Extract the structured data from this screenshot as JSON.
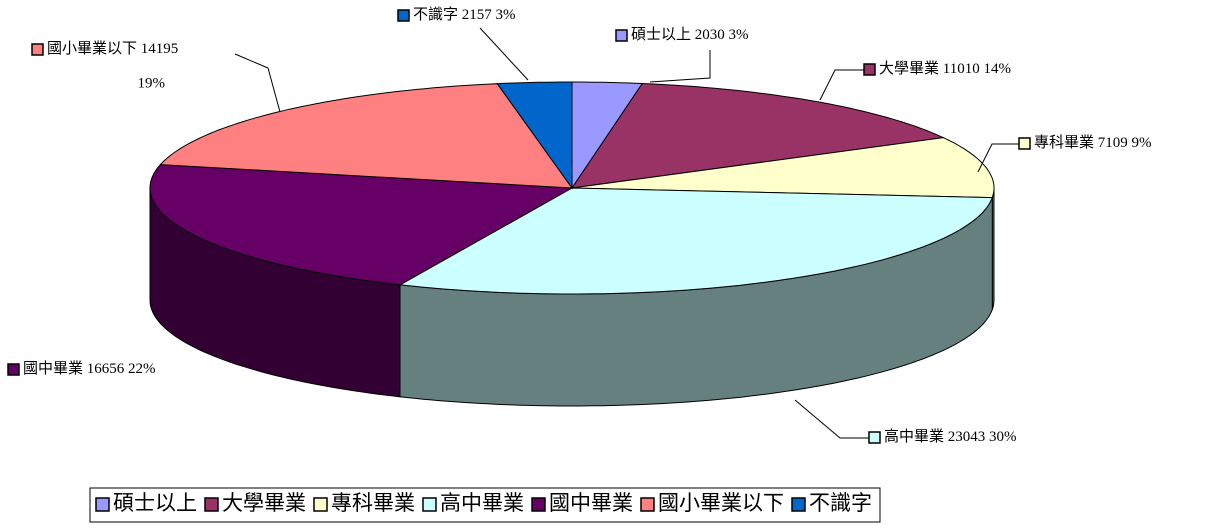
{
  "chart_data": {
    "type": "pie3d",
    "categories": [
      "碩士以上",
      "大學畢業",
      "專科畢業",
      "高中畢業",
      "國中畢業",
      "國小畢業以下",
      "不識字"
    ],
    "values": [
      2030,
      11010,
      7109,
      23043,
      16656,
      14195,
      2157
    ],
    "percent_labels": [
      "3%",
      "14%",
      "9%",
      "30%",
      "22%",
      "19%",
      "3%"
    ],
    "colors": [
      "#9999ff",
      "#993366",
      "#ffffcc",
      "#ccffff",
      "#660066",
      "#ff8080",
      "#0066cc"
    ],
    "legend": "bottom"
  }
}
